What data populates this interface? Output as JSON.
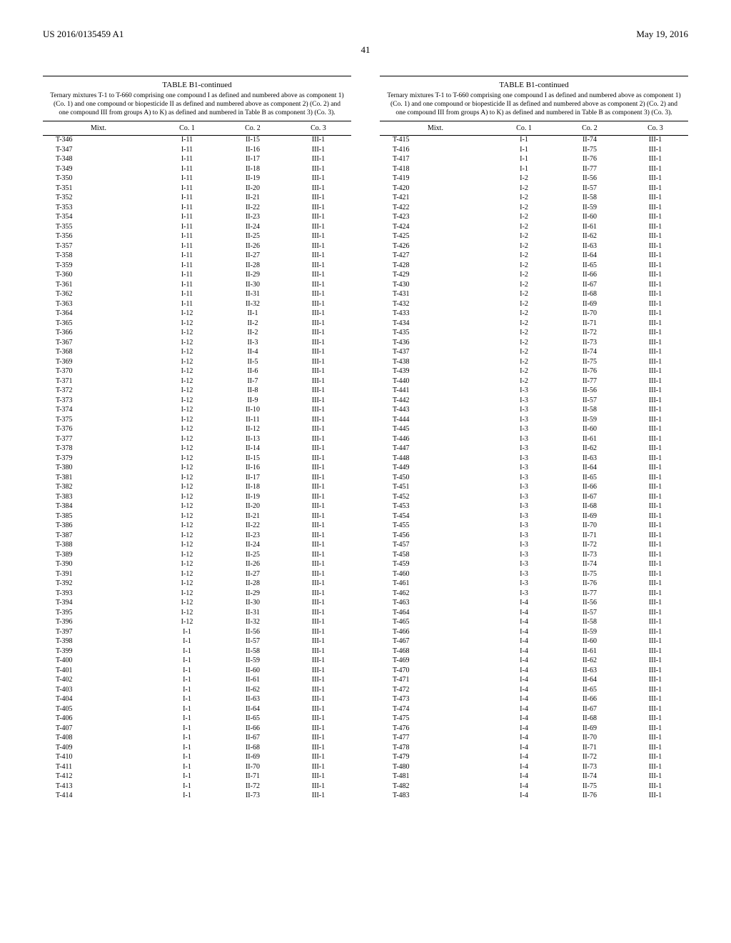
{
  "header": {
    "left": "US 2016/0135459 A1",
    "right": "May 19, 2016",
    "page_number": "41"
  },
  "table_title": "TABLE B1-continued",
  "table_caption": "Ternary mixtures T-1 to T-660 comprising one compound I as defined and numbered above as component 1) (Co. 1) and one compound or biopesticide II as defined and numbered above as component 2) (Co. 2) and one compound III from groups A) to K) as defined and numbered in Table B as component 3) (Co. 3).",
  "columns": [
    "Mixt.",
    "Co. 1",
    "Co. 2",
    "Co. 3"
  ],
  "left_rows": [
    [
      "T-346",
      "I-11",
      "II-15",
      "III-1"
    ],
    [
      "T-347",
      "I-11",
      "II-16",
      "III-1"
    ],
    [
      "T-348",
      "I-11",
      "II-17",
      "III-1"
    ],
    [
      "T-349",
      "I-11",
      "II-18",
      "III-1"
    ],
    [
      "T-350",
      "I-11",
      "II-19",
      "III-1"
    ],
    [
      "T-351",
      "I-11",
      "II-20",
      "III-1"
    ],
    [
      "T-352",
      "I-11",
      "II-21",
      "III-1"
    ],
    [
      "T-353",
      "I-11",
      "II-22",
      "III-1"
    ],
    [
      "T-354",
      "I-11",
      "II-23",
      "III-1"
    ],
    [
      "T-355",
      "I-11",
      "II-24",
      "III-1"
    ],
    [
      "T-356",
      "I-11",
      "II-25",
      "III-1"
    ],
    [
      "T-357",
      "I-11",
      "II-26",
      "III-1"
    ],
    [
      "T-358",
      "I-11",
      "II-27",
      "III-1"
    ],
    [
      "T-359",
      "I-11",
      "II-28",
      "III-1"
    ],
    [
      "T-360",
      "I-11",
      "II-29",
      "III-1"
    ],
    [
      "T-361",
      "I-11",
      "II-30",
      "III-1"
    ],
    [
      "T-362",
      "I-11",
      "II-31",
      "III-1"
    ],
    [
      "T-363",
      "I-11",
      "II-32",
      "III-1"
    ],
    [
      "T-364",
      "I-12",
      "II-1",
      "III-1"
    ],
    [
      "T-365",
      "I-12",
      "II-2",
      "III-1"
    ],
    [
      "T-366",
      "I-12",
      "II-2",
      "III-1"
    ],
    [
      "T-367",
      "I-12",
      "II-3",
      "III-1"
    ],
    [
      "T-368",
      "I-12",
      "II-4",
      "III-1"
    ],
    [
      "T-369",
      "I-12",
      "II-5",
      "III-1"
    ],
    [
      "T-370",
      "I-12",
      "II-6",
      "III-1"
    ],
    [
      "T-371",
      "I-12",
      "II-7",
      "III-1"
    ],
    [
      "T-372",
      "I-12",
      "II-8",
      "III-1"
    ],
    [
      "T-373",
      "I-12",
      "II-9",
      "III-1"
    ],
    [
      "T-374",
      "I-12",
      "II-10",
      "III-1"
    ],
    [
      "T-375",
      "I-12",
      "II-11",
      "III-1"
    ],
    [
      "T-376",
      "I-12",
      "II-12",
      "III-1"
    ],
    [
      "T-377",
      "I-12",
      "II-13",
      "III-1"
    ],
    [
      "T-378",
      "I-12",
      "II-14",
      "III-1"
    ],
    [
      "T-379",
      "I-12",
      "II-15",
      "III-1"
    ],
    [
      "T-380",
      "I-12",
      "II-16",
      "III-1"
    ],
    [
      "T-381",
      "I-12",
      "II-17",
      "III-1"
    ],
    [
      "T-382",
      "I-12",
      "II-18",
      "III-1"
    ],
    [
      "T-383",
      "I-12",
      "II-19",
      "III-1"
    ],
    [
      "T-384",
      "I-12",
      "II-20",
      "III-1"
    ],
    [
      "T-385",
      "I-12",
      "II-21",
      "III-1"
    ],
    [
      "T-386",
      "I-12",
      "II-22",
      "III-1"
    ],
    [
      "T-387",
      "I-12",
      "II-23",
      "III-1"
    ],
    [
      "T-388",
      "I-12",
      "II-24",
      "III-1"
    ],
    [
      "T-389",
      "I-12",
      "II-25",
      "III-1"
    ],
    [
      "T-390",
      "I-12",
      "II-26",
      "III-1"
    ],
    [
      "T-391",
      "I-12",
      "II-27",
      "III-1"
    ],
    [
      "T-392",
      "I-12",
      "II-28",
      "III-1"
    ],
    [
      "T-393",
      "I-12",
      "II-29",
      "III-1"
    ],
    [
      "T-394",
      "I-12",
      "II-30",
      "III-1"
    ],
    [
      "T-395",
      "I-12",
      "II-31",
      "III-1"
    ],
    [
      "T-396",
      "I-12",
      "II-32",
      "III-1"
    ],
    [
      "T-397",
      "I-1",
      "II-56",
      "III-1"
    ],
    [
      "T-398",
      "I-1",
      "II-57",
      "III-1"
    ],
    [
      "T-399",
      "I-1",
      "II-58",
      "III-1"
    ],
    [
      "T-400",
      "I-1",
      "II-59",
      "III-1"
    ],
    [
      "T-401",
      "I-1",
      "II-60",
      "III-1"
    ],
    [
      "T-402",
      "I-1",
      "II-61",
      "III-1"
    ],
    [
      "T-403",
      "I-1",
      "II-62",
      "III-1"
    ],
    [
      "T-404",
      "I-1",
      "II-63",
      "III-1"
    ],
    [
      "T-405",
      "I-1",
      "II-64",
      "III-1"
    ],
    [
      "T-406",
      "I-1",
      "II-65",
      "III-1"
    ],
    [
      "T-407",
      "I-1",
      "II-66",
      "III-1"
    ],
    [
      "T-408",
      "I-1",
      "II-67",
      "III-1"
    ],
    [
      "T-409",
      "I-1",
      "II-68",
      "III-1"
    ],
    [
      "T-410",
      "I-1",
      "II-69",
      "III-1"
    ],
    [
      "T-411",
      "I-1",
      "II-70",
      "III-1"
    ],
    [
      "T-412",
      "I-1",
      "II-71",
      "III-1"
    ],
    [
      "T-413",
      "I-1",
      "II-72",
      "III-1"
    ],
    [
      "T-414",
      "I-1",
      "II-73",
      "III-1"
    ]
  ],
  "right_rows": [
    [
      "T-415",
      "I-1",
      "II-74",
      "III-1"
    ],
    [
      "T-416",
      "I-1",
      "II-75",
      "III-1"
    ],
    [
      "T-417",
      "I-1",
      "II-76",
      "III-1"
    ],
    [
      "T-418",
      "I-1",
      "II-77",
      "III-1"
    ],
    [
      "T-419",
      "I-2",
      "II-56",
      "III-1"
    ],
    [
      "T-420",
      "I-2",
      "II-57",
      "III-1"
    ],
    [
      "T-421",
      "I-2",
      "II-58",
      "III-1"
    ],
    [
      "T-422",
      "I-2",
      "II-59",
      "III-1"
    ],
    [
      "T-423",
      "I-2",
      "II-60",
      "III-1"
    ],
    [
      "T-424",
      "I-2",
      "II-61",
      "III-1"
    ],
    [
      "T-425",
      "I-2",
      "II-62",
      "III-1"
    ],
    [
      "T-426",
      "I-2",
      "II-63",
      "III-1"
    ],
    [
      "T-427",
      "I-2",
      "II-64",
      "III-1"
    ],
    [
      "T-428",
      "I-2",
      "II-65",
      "III-1"
    ],
    [
      "T-429",
      "I-2",
      "II-66",
      "III-1"
    ],
    [
      "T-430",
      "I-2",
      "II-67",
      "III-1"
    ],
    [
      "T-431",
      "I-2",
      "II-68",
      "III-1"
    ],
    [
      "T-432",
      "I-2",
      "II-69",
      "III-1"
    ],
    [
      "T-433",
      "I-2",
      "II-70",
      "III-1"
    ],
    [
      "T-434",
      "I-2",
      "II-71",
      "III-1"
    ],
    [
      "T-435",
      "I-2",
      "II-72",
      "III-1"
    ],
    [
      "T-436",
      "I-2",
      "II-73",
      "III-1"
    ],
    [
      "T-437",
      "I-2",
      "II-74",
      "III-1"
    ],
    [
      "T-438",
      "I-2",
      "II-75",
      "III-1"
    ],
    [
      "T-439",
      "I-2",
      "II-76",
      "III-1"
    ],
    [
      "T-440",
      "I-2",
      "II-77",
      "III-1"
    ],
    [
      "T-441",
      "I-3",
      "II-56",
      "III-1"
    ],
    [
      "T-442",
      "I-3",
      "II-57",
      "III-1"
    ],
    [
      "T-443",
      "I-3",
      "II-58",
      "III-1"
    ],
    [
      "T-444",
      "I-3",
      "II-59",
      "III-1"
    ],
    [
      "T-445",
      "I-3",
      "II-60",
      "III-1"
    ],
    [
      "T-446",
      "I-3",
      "II-61",
      "III-1"
    ],
    [
      "T-447",
      "I-3",
      "II-62",
      "III-1"
    ],
    [
      "T-448",
      "I-3",
      "II-63",
      "III-1"
    ],
    [
      "T-449",
      "I-3",
      "II-64",
      "III-1"
    ],
    [
      "T-450",
      "I-3",
      "II-65",
      "III-1"
    ],
    [
      "T-451",
      "I-3",
      "II-66",
      "III-1"
    ],
    [
      "T-452",
      "I-3",
      "II-67",
      "III-1"
    ],
    [
      "T-453",
      "I-3",
      "II-68",
      "III-1"
    ],
    [
      "T-454",
      "I-3",
      "II-69",
      "III-1"
    ],
    [
      "T-455",
      "I-3",
      "II-70",
      "III-1"
    ],
    [
      "T-456",
      "I-3",
      "II-71",
      "III-1"
    ],
    [
      "T-457",
      "I-3",
      "II-72",
      "III-1"
    ],
    [
      "T-458",
      "I-3",
      "II-73",
      "III-1"
    ],
    [
      "T-459",
      "I-3",
      "II-74",
      "III-1"
    ],
    [
      "T-460",
      "I-3",
      "II-75",
      "III-1"
    ],
    [
      "T-461",
      "I-3",
      "II-76",
      "III-1"
    ],
    [
      "T-462",
      "I-3",
      "II-77",
      "III-1"
    ],
    [
      "T-463",
      "I-4",
      "II-56",
      "III-1"
    ],
    [
      "T-464",
      "I-4",
      "II-57",
      "III-1"
    ],
    [
      "T-465",
      "I-4",
      "II-58",
      "III-1"
    ],
    [
      "T-466",
      "I-4",
      "II-59",
      "III-1"
    ],
    [
      "T-467",
      "I-4",
      "II-60",
      "III-1"
    ],
    [
      "T-468",
      "I-4",
      "II-61",
      "III-1"
    ],
    [
      "T-469",
      "I-4",
      "II-62",
      "III-1"
    ],
    [
      "T-470",
      "I-4",
      "II-63",
      "III-1"
    ],
    [
      "T-471",
      "I-4",
      "II-64",
      "III-1"
    ],
    [
      "T-472",
      "I-4",
      "II-65",
      "III-1"
    ],
    [
      "T-473",
      "I-4",
      "II-66",
      "III-1"
    ],
    [
      "T-474",
      "I-4",
      "II-67",
      "III-1"
    ],
    [
      "T-475",
      "I-4",
      "II-68",
      "III-1"
    ],
    [
      "T-476",
      "I-4",
      "II-69",
      "III-1"
    ],
    [
      "T-477",
      "I-4",
      "II-70",
      "III-1"
    ],
    [
      "T-478",
      "I-4",
      "II-71",
      "III-1"
    ],
    [
      "T-479",
      "I-4",
      "II-72",
      "III-1"
    ],
    [
      "T-480",
      "I-4",
      "II-73",
      "III-1"
    ],
    [
      "T-481",
      "I-4",
      "II-74",
      "III-1"
    ],
    [
      "T-482",
      "I-4",
      "II-75",
      "III-1"
    ],
    [
      "T-483",
      "I-4",
      "II-76",
      "III-1"
    ]
  ]
}
